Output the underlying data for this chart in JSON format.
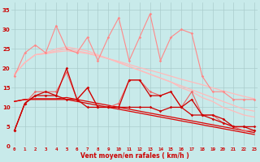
{
  "x": [
    0,
    1,
    2,
    3,
    4,
    5,
    6,
    7,
    8,
    9,
    10,
    11,
    12,
    13,
    14,
    15,
    16,
    17,
    18,
    19,
    20,
    21,
    22,
    23
  ],
  "smooth_pink1": [
    18.5,
    21.5,
    23.5,
    23.8,
    24.2,
    24.5,
    24.2,
    23.8,
    23.2,
    22.5,
    21.8,
    21.0,
    20.2,
    19.5,
    18.8,
    18.0,
    17.2,
    16.5,
    15.8,
    15.0,
    14.2,
    13.5,
    12.8,
    12.2
  ],
  "smooth_pink2": [
    18.5,
    21.5,
    23.5,
    23.8,
    24.5,
    25.0,
    24.5,
    24.0,
    23.2,
    22.5,
    21.5,
    20.5,
    19.5,
    18.5,
    17.5,
    16.5,
    15.5,
    14.5,
    13.5,
    12.5,
    11.5,
    10.5,
    9.5,
    9.0
  ],
  "smooth_pink3": [
    18.5,
    21.5,
    23.5,
    24.0,
    25.0,
    25.5,
    25.0,
    24.5,
    23.5,
    22.5,
    21.5,
    20.5,
    19.5,
    18.5,
    17.5,
    16.5,
    15.0,
    14.0,
    12.5,
    11.5,
    10.0,
    9.0,
    8.0,
    7.5
  ],
  "smooth_red1": [
    11.5,
    12.0,
    12.0,
    12.0,
    12.0,
    12.0,
    11.5,
    11.0,
    10.5,
    10.0,
    9.5,
    9.0,
    8.5,
    8.0,
    7.5,
    7.0,
    6.5,
    6.0,
    5.5,
    5.0,
    4.5,
    4.0,
    3.5,
    3.0
  ],
  "smooth_red2": [
    11.5,
    12.0,
    12.2,
    12.2,
    12.2,
    12.5,
    12.0,
    11.5,
    11.0,
    10.5,
    10.0,
    9.5,
    9.0,
    8.5,
    8.0,
    7.5,
    7.0,
    6.5,
    6.0,
    5.5,
    5.0,
    4.5,
    4.0,
    3.5
  ],
  "jagged_pink1": [
    18,
    24,
    26,
    24,
    31,
    25,
    24,
    28,
    22,
    28,
    33,
    22,
    28,
    34,
    22,
    28,
    30,
    29,
    18,
    14,
    14,
    12,
    12,
    12
  ],
  "jagged_pink2": [
    4,
    11,
    14,
    14,
    14,
    19,
    12,
    15,
    10,
    10,
    11,
    17,
    17,
    14,
    13,
    14,
    10,
    14,
    8,
    8,
    6,
    5,
    4,
    4
  ],
  "jagged_red1": [
    4,
    11,
    13,
    14,
    13,
    20,
    12,
    15,
    10,
    10,
    10,
    17,
    17,
    13,
    13,
    14,
    10,
    12,
    8,
    8,
    7,
    5,
    5,
    4
  ],
  "jagged_red2": [
    4,
    11,
    13,
    13,
    13,
    12,
    12,
    10,
    10,
    10,
    10,
    10,
    10,
    10,
    9,
    10,
    10,
    8,
    8,
    7,
    6,
    5,
    5,
    5
  ],
  "background_color": "#c8eaea",
  "grid_color": "#aacccc",
  "xlabel": "Vent moyen/en rafales ( km/h )",
  "yticks": [
    0,
    5,
    10,
    15,
    20,
    25,
    30,
    35
  ],
  "xlim": [
    -0.3,
    23.3
  ],
  "ylim": [
    0,
    37
  ]
}
